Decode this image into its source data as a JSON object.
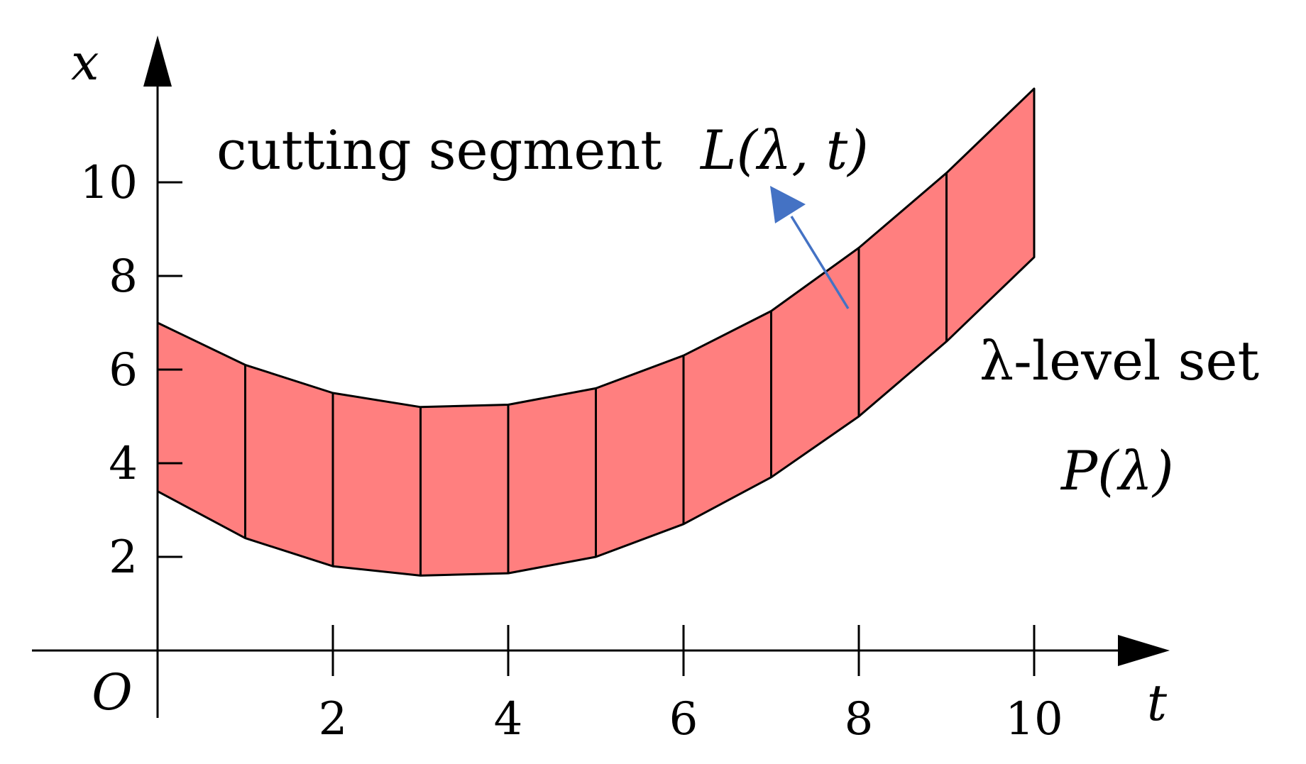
{
  "axes": {
    "x_axis_label": "t",
    "y_axis_label": "x",
    "origin_label": "O",
    "x_ticks": [
      "2",
      "4",
      "6",
      "8",
      "10"
    ],
    "y_ticks": [
      "2",
      "4",
      "6",
      "8",
      "10"
    ],
    "x_range": [
      0,
      10
    ],
    "y_range": [
      0,
      12
    ]
  },
  "band": {
    "t": [
      0,
      1,
      2,
      3,
      4,
      5,
      6,
      7,
      8,
      9,
      10
    ],
    "upper": [
      7.0,
      6.1,
      5.5,
      5.2,
      5.25,
      5.6,
      6.3,
      7.25,
      8.6,
      10.2,
      12.0
    ],
    "lower": [
      3.4,
      2.4,
      1.8,
      1.6,
      1.65,
      2.0,
      2.7,
      3.7,
      5.0,
      6.6,
      8.4
    ],
    "fill_color": "#ff7f7f",
    "stroke_color": "#000000"
  },
  "annotations": {
    "cutting_segment_text": "cutting segment",
    "cutting_segment_math": "L(λ, t)",
    "level_set_text": "λ-level set",
    "level_set_math": "P(λ)",
    "arrow_color": "#4472c4"
  }
}
